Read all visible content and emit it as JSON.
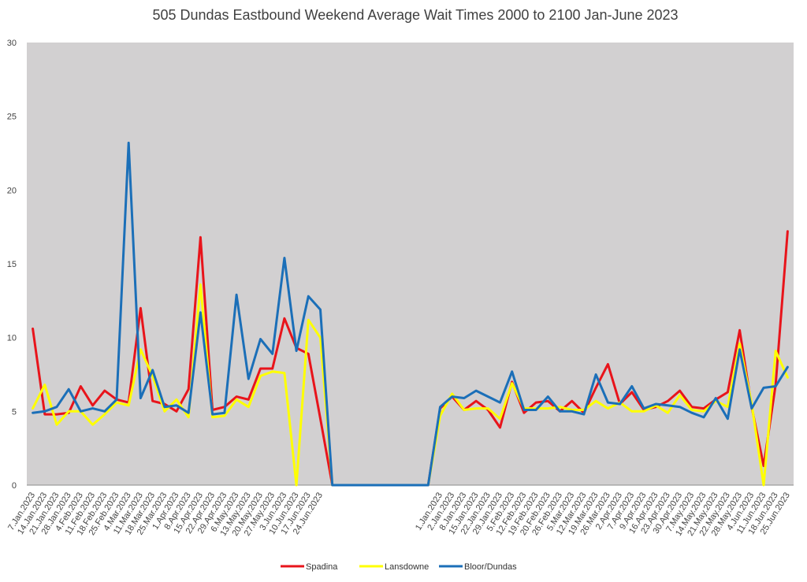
{
  "chart_data": {
    "type": "line",
    "title": "505 Dundas Eastbound Weekend Average Wait Times 2000 to 2100 Jan-June 2023",
    "xlabel": "",
    "ylabel": "",
    "ylim": [
      0,
      30
    ],
    "yticks": [
      0,
      5,
      10,
      15,
      20,
      25,
      30
    ],
    "grid": false,
    "legend_position": "bottom",
    "categories": [
      "7.Jan.2023",
      "14.Jan.2023",
      "21.Jan.2023",
      "28.Jan.2023",
      "4.Feb.2023",
      "11.Feb.2023",
      "18.Feb.2023",
      "25.Feb.2023",
      "4.Mar.2023",
      "11.Mar.2023",
      "18.Mar.2023",
      "25.Mar.2023",
      "1.Apr.2023",
      "8.Apr.2023",
      "15.Apr.2023",
      "22.Apr.2023",
      "29.Apr.2023",
      "6.May.2023",
      "13.May.2023",
      "20.May.2023",
      "27.May.2023",
      "3.Jun.2023",
      "10.Jun.2023",
      "17.Jun.2023",
      "24.Jun.2023",
      "",
      "",
      "",
      "",
      "",
      "",
      "",
      "",
      "",
      "1.Jan.2023",
      "2.Jan.2023",
      "8.Jan.2023",
      "15.Jan.2023",
      "22.Jan.2023",
      "29.Jan.2023",
      "5.Feb.2023",
      "12.Feb.2023",
      "19.Feb.2023",
      "20.Feb.2023",
      "26.Feb.2023",
      "5.Mar.2023",
      "12.Mar.2023",
      "19.Mar.2023",
      "26.Mar.2023",
      "2.Apr.2023",
      "7.Apr.2023",
      "9.Apr.2023",
      "16.Apr.2023",
      "23.Apr.2023",
      "30.Apr.2023",
      "7.May.2023",
      "14.May.2023",
      "21.May.2023",
      "22.May.2023",
      "28.May.2023",
      "4.Jun.2023",
      "11.Jun.2023",
      "18.Jun.2023",
      "25.Jun.2023"
    ],
    "series": [
      {
        "name": "Spadina",
        "color": "#e8141b",
        "values": [
          10.6,
          4.8,
          4.8,
          4.9,
          6.7,
          5.4,
          6.4,
          5.8,
          5.6,
          12.0,
          5.7,
          5.5,
          5.0,
          6.5,
          16.8,
          5.1,
          5.3,
          6.0,
          5.8,
          7.9,
          7.9,
          11.3,
          9.3,
          8.9,
          4.5,
          0,
          0,
          0,
          0,
          0,
          0,
          0,
          0,
          0,
          5.2,
          6.0,
          5.1,
          5.7,
          5.1,
          3.9,
          7.0,
          4.9,
          5.6,
          5.7,
          5.0,
          5.7,
          4.9,
          6.6,
          8.2,
          5.5,
          6.3,
          5.1,
          5.3,
          5.7,
          6.4,
          5.3,
          5.2,
          5.8,
          6.3,
          10.5,
          5.3,
          1.3,
          6.8,
          17.2
        ]
      },
      {
        "name": "Lansdowne",
        "color": "#ffff00",
        "values": [
          5.2,
          6.8,
          4.1,
          5.0,
          5.0,
          4.1,
          4.8,
          5.6,
          5.4,
          9.2,
          7.4,
          5.0,
          5.8,
          4.6,
          13.6,
          4.6,
          4.7,
          5.8,
          5.3,
          7.4,
          7.7,
          7.6,
          0.0,
          11.2,
          10.0,
          0,
          0,
          0,
          0,
          0,
          0,
          0,
          0,
          0,
          4.7,
          6.2,
          5.1,
          5.2,
          5.2,
          4.5,
          6.9,
          5.2,
          5.2,
          5.2,
          5.3,
          5.1,
          5.1,
          5.7,
          5.2,
          5.6,
          5.0,
          5.0,
          5.4,
          4.9,
          6.1,
          5.1,
          5.0,
          5.7,
          5.3,
          9.6,
          5.5,
          0.0,
          9.1,
          7.3
        ]
      },
      {
        "name": "Bloor/Dundas",
        "color": "#1b6fb8",
        "values": [
          4.9,
          5.0,
          5.3,
          6.5,
          5.0,
          5.2,
          5.0,
          5.8,
          23.2,
          5.9,
          7.8,
          5.3,
          5.4,
          4.9,
          11.7,
          4.8,
          4.9,
          12.9,
          7.2,
          9.9,
          8.9,
          15.4,
          9.1,
          12.8,
          11.9,
          0,
          0,
          0,
          0,
          0,
          0,
          0,
          0,
          0,
          5.3,
          6.0,
          5.9,
          6.4,
          6.0,
          5.6,
          7.7,
          5.1,
          5.1,
          6.0,
          5.0,
          5.0,
          4.8,
          7.5,
          5.6,
          5.5,
          6.7,
          5.2,
          5.5,
          5.4,
          5.3,
          4.9,
          4.6,
          5.9,
          4.5,
          9.2,
          5.2,
          6.6,
          6.7,
          8.0
        ]
      }
    ]
  }
}
